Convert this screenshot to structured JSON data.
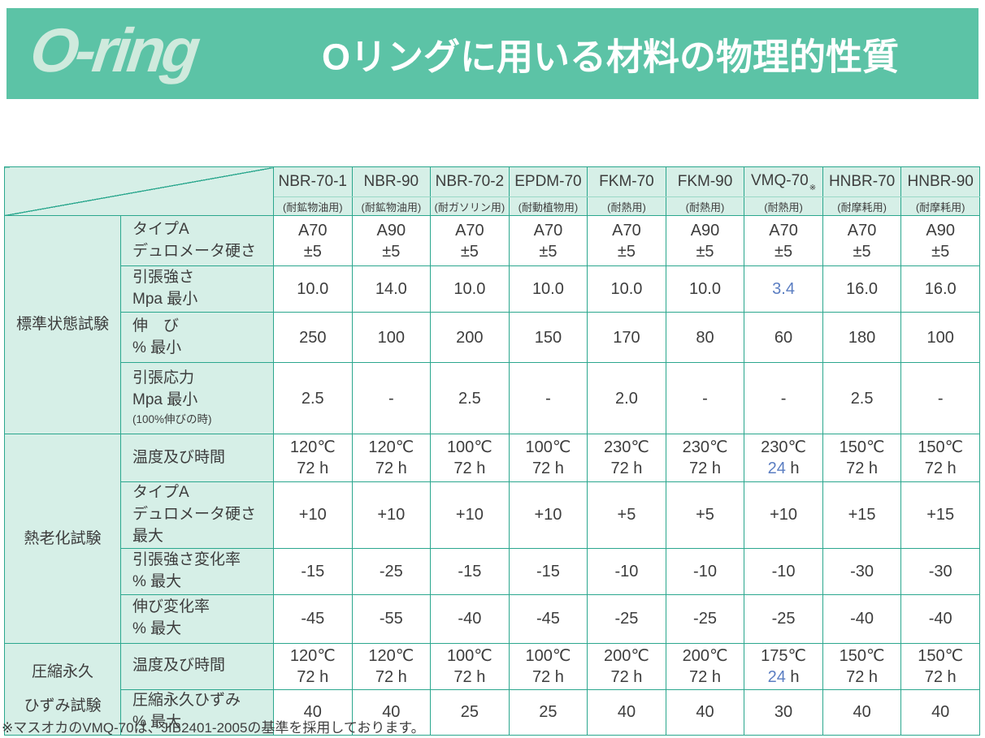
{
  "header": {
    "logo": "O-ring",
    "title": "Oリングに用いる材料の物理的性質"
  },
  "colors": {
    "banner_teal": "#5cc3a6",
    "border_teal": "#2ba78e",
    "cell_mint": "#d6efe7",
    "highlight_blue": "#5b7ec2"
  },
  "table": {
    "materials": [
      {
        "name": "NBR-70-1",
        "use": "(耐鉱物油用)",
        "mark": ""
      },
      {
        "name": "NBR-90",
        "use": "(耐鉱物油用)",
        "mark": ""
      },
      {
        "name": "NBR-70-2",
        "use": "(耐ガソリン用)",
        "mark": ""
      },
      {
        "name": "EPDM-70",
        "use": "(耐動植物用)",
        "mark": ""
      },
      {
        "name": "FKM-70",
        "use": "(耐熱用)",
        "mark": ""
      },
      {
        "name": "FKM-90",
        "use": "(耐熱用)",
        "mark": ""
      },
      {
        "name": "VMQ-70",
        "use": "(耐熱用)",
        "mark": "※"
      },
      {
        "name": "HNBR-70",
        "use": "(耐摩耗用)",
        "mark": ""
      },
      {
        "name": "HNBR-90",
        "use": "(耐摩耗用)",
        "mark": ""
      }
    ],
    "groups": [
      {
        "label_lines": [
          "標準状態試験"
        ],
        "rows": [
          {
            "label_lines": [
              "タイプA",
              "デュロメータ硬さ"
            ],
            "note": "",
            "cells": [
              [
                "A70",
                "±5"
              ],
              [
                "A90",
                "±5"
              ],
              [
                "A70",
                "±5"
              ],
              [
                "A70",
                "±5"
              ],
              [
                "A70",
                "±5"
              ],
              [
                "A90",
                "±5"
              ],
              [
                "A70",
                "±5"
              ],
              [
                "A70",
                "±5"
              ],
              [
                "A90",
                "±5"
              ]
            ]
          },
          {
            "label_lines": [
              "引張強さ",
              "Mpa 最小"
            ],
            "note": "",
            "cells": [
              [
                "10.0"
              ],
              [
                "14.0"
              ],
              [
                "10.0"
              ],
              [
                "10.0"
              ],
              [
                "10.0"
              ],
              [
                "10.0"
              ],
              [
                "{3.4}"
              ],
              [
                "16.0"
              ],
              [
                "16.0"
              ]
            ]
          },
          {
            "label_lines": [
              "伸　び",
              "% 最小"
            ],
            "note": "",
            "cells": [
              [
                "250"
              ],
              [
                "100"
              ],
              [
                "200"
              ],
              [
                "150"
              ],
              [
                "170"
              ],
              [
                "80"
              ],
              [
                "60"
              ],
              [
                "180"
              ],
              [
                "100"
              ]
            ]
          },
          {
            "label_lines": [
              "引張応力",
              "Mpa 最小"
            ],
            "note": "(100%伸びの時)",
            "cells": [
              [
                "2.5"
              ],
              [
                "-"
              ],
              [
                "2.5"
              ],
              [
                "-"
              ],
              [
                "2.0"
              ],
              [
                "-"
              ],
              [
                "-"
              ],
              [
                "2.5"
              ],
              [
                "-"
              ]
            ]
          }
        ]
      },
      {
        "label_lines": [
          "熱老化試験"
        ],
        "rows": [
          {
            "label_lines": [
              "温度及び時間"
            ],
            "note": "",
            "cells": [
              [
                "120℃",
                "72 h"
              ],
              [
                "120℃",
                "72 h"
              ],
              [
                "100℃",
                "72 h"
              ],
              [
                "100℃",
                "72 h"
              ],
              [
                "230℃",
                "72 h"
              ],
              [
                "230℃",
                "72 h"
              ],
              [
                "230℃",
                "{24} h"
              ],
              [
                "150℃",
                "72 h"
              ],
              [
                "150℃",
                "72 h"
              ]
            ]
          },
          {
            "label_lines": [
              "タイプA",
              "デュロメータ硬さ 最大"
            ],
            "note": "",
            "cells": [
              [
                "+10"
              ],
              [
                "+10"
              ],
              [
                "+10"
              ],
              [
                "+10"
              ],
              [
                "+5"
              ],
              [
                "+5"
              ],
              [
                "+10"
              ],
              [
                "+15"
              ],
              [
                "+15"
              ]
            ]
          },
          {
            "label_lines": [
              "引張強さ変化率",
              "% 最大"
            ],
            "note": "",
            "cells": [
              [
                "-15"
              ],
              [
                "-25"
              ],
              [
                "-15"
              ],
              [
                "-15"
              ],
              [
                "-10"
              ],
              [
                "-10"
              ],
              [
                "-10"
              ],
              [
                "-30"
              ],
              [
                "-30"
              ]
            ]
          },
          {
            "label_lines": [
              "伸び変化率",
              "% 最大"
            ],
            "note": "",
            "cells": [
              [
                "-45"
              ],
              [
                "-55"
              ],
              [
                "-40"
              ],
              [
                "-45"
              ],
              [
                "-25"
              ],
              [
                "-25"
              ],
              [
                "-25"
              ],
              [
                "-40"
              ],
              [
                "-40"
              ]
            ]
          }
        ]
      },
      {
        "label_lines": [
          "圧縮永久",
          "ひずみ試験"
        ],
        "rows": [
          {
            "label_lines": [
              "温度及び時間"
            ],
            "note": "",
            "cells": [
              [
                "120℃",
                "72 h"
              ],
              [
                "120℃",
                "72 h"
              ],
              [
                "100℃",
                "72 h"
              ],
              [
                "100℃",
                "72 h"
              ],
              [
                "200℃",
                "72 h"
              ],
              [
                "200℃",
                "72 h"
              ],
              [
                "175℃",
                "{24} h"
              ],
              [
                "150℃",
                "72 h"
              ],
              [
                "150℃",
                "72 h"
              ]
            ]
          },
          {
            "label_lines": [
              "圧縮永久ひずみ",
              "% 最大"
            ],
            "note": "",
            "cells": [
              [
                "40"
              ],
              [
                "40"
              ],
              [
                "25"
              ],
              [
                "25"
              ],
              [
                "40"
              ],
              [
                "40"
              ],
              [
                "30"
              ],
              [
                "40"
              ],
              [
                "40"
              ]
            ]
          }
        ]
      }
    ]
  },
  "footnote": "※マスオカのVMQ-70は、JIB2401-2005の基準を採用しております。"
}
